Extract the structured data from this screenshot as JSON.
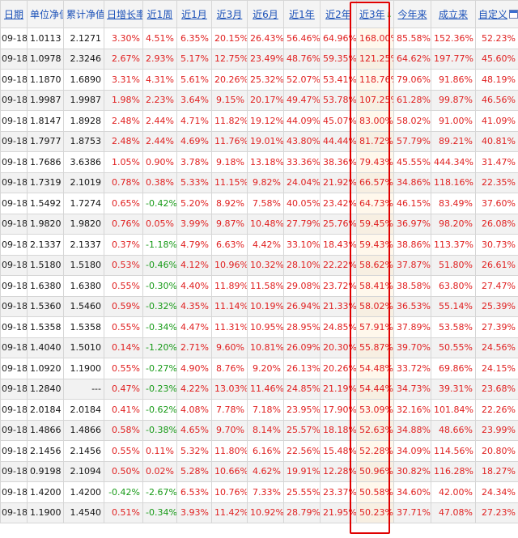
{
  "headers": {
    "date": "日期",
    "unit_nav": "单位净值",
    "acc_nav": "累计净值",
    "daily": "日增长率",
    "w1": "近1周",
    "m1": "近1月",
    "m3": "近3月",
    "m6": "近6月",
    "y1": "近1年",
    "y2": "近2年",
    "y3": "近3年",
    "ytd": "今年来",
    "since": "成立来",
    "custom": "自定义"
  },
  "icons": {
    "sort": "sort-down-arrow-icon",
    "custom": "calendar-icon"
  },
  "colors": {
    "up": "#e02020",
    "down": "#179a17",
    "link": "#1a50b8",
    "highlight": "#e00000"
  },
  "rows": [
    [
      "09-18",
      "1.0113",
      "2.1271",
      "3.30%",
      "4.51%",
      "6.35%",
      "20.15%",
      "26.43%",
      "56.46%",
      "64.96%",
      "168.00%",
      "85.58%",
      "152.36%",
      "52.23%"
    ],
    [
      "09-18",
      "1.0978",
      "2.3246",
      "2.67%",
      "2.93%",
      "5.17%",
      "12.75%",
      "23.49%",
      "48.76%",
      "59.35%",
      "121.25%",
      "64.62%",
      "197.77%",
      "45.60%"
    ],
    [
      "09-18",
      "1.1870",
      "1.6890",
      "3.31%",
      "4.31%",
      "5.61%",
      "20.26%",
      "25.32%",
      "52.07%",
      "53.41%",
      "118.76%",
      "79.06%",
      "91.86%",
      "48.19%"
    ],
    [
      "09-18",
      "1.9987",
      "1.9987",
      "1.98%",
      "2.23%",
      "3.64%",
      "9.15%",
      "20.17%",
      "49.47%",
      "53.78%",
      "107.25%",
      "61.28%",
      "99.87%",
      "46.56%"
    ],
    [
      "09-18",
      "1.8147",
      "1.8928",
      "2.48%",
      "2.44%",
      "4.71%",
      "11.82%",
      "19.12%",
      "44.09%",
      "45.07%",
      "83.00%",
      "58.02%",
      "91.00%",
      "41.09%"
    ],
    [
      "09-18",
      "1.7977",
      "1.8753",
      "2.48%",
      "2.44%",
      "4.69%",
      "11.76%",
      "19.01%",
      "43.80%",
      "44.44%",
      "81.72%",
      "57.79%",
      "89.21%",
      "40.81%"
    ],
    [
      "09-18",
      "1.7686",
      "3.6386",
      "1.05%",
      "0.90%",
      "3.78%",
      "9.18%",
      "13.18%",
      "33.36%",
      "38.36%",
      "79.43%",
      "45.55%",
      "444.34%",
      "31.47%"
    ],
    [
      "09-18",
      "1.7319",
      "2.1019",
      "0.78%",
      "0.38%",
      "5.33%",
      "11.15%",
      "9.82%",
      "24.04%",
      "21.92%",
      "66.57%",
      "34.86%",
      "118.16%",
      "22.35%"
    ],
    [
      "09-18",
      "1.5492",
      "1.7274",
      "0.65%",
      "-0.42%",
      "5.20%",
      "8.92%",
      "7.58%",
      "40.05%",
      "23.42%",
      "64.73%",
      "46.15%",
      "83.49%",
      "37.60%"
    ],
    [
      "09-18",
      "1.9820",
      "1.9820",
      "0.76%",
      "0.05%",
      "3.99%",
      "9.87%",
      "10.48%",
      "27.79%",
      "25.76%",
      "59.45%",
      "36.97%",
      "98.20%",
      "26.08%"
    ],
    [
      "09-18",
      "2.1337",
      "2.1337",
      "0.37%",
      "-1.18%",
      "4.79%",
      "6.63%",
      "4.42%",
      "33.10%",
      "18.43%",
      "59.43%",
      "38.86%",
      "113.37%",
      "30.73%"
    ],
    [
      "09-18",
      "1.5180",
      "1.5180",
      "0.53%",
      "-0.46%",
      "4.12%",
      "10.96%",
      "10.32%",
      "28.10%",
      "22.22%",
      "58.62%",
      "37.87%",
      "51.80%",
      "26.61%"
    ],
    [
      "09-18",
      "1.6380",
      "1.6380",
      "0.55%",
      "-0.30%",
      "4.40%",
      "11.89%",
      "11.58%",
      "29.08%",
      "23.72%",
      "58.41%",
      "38.58%",
      "63.80%",
      "27.47%"
    ],
    [
      "09-18",
      "1.5360",
      "1.5460",
      "0.59%",
      "-0.32%",
      "4.35%",
      "11.14%",
      "10.19%",
      "26.94%",
      "21.33%",
      "58.02%",
      "36.53%",
      "55.14%",
      "25.39%"
    ],
    [
      "09-18",
      "1.5358",
      "1.5358",
      "0.55%",
      "-0.34%",
      "4.47%",
      "11.31%",
      "10.95%",
      "28.95%",
      "24.85%",
      "57.91%",
      "37.89%",
      "53.58%",
      "27.39%"
    ],
    [
      "09-18",
      "1.4040",
      "1.5010",
      "0.14%",
      "-1.20%",
      "2.71%",
      "9.60%",
      "10.81%",
      "26.09%",
      "20.30%",
      "55.87%",
      "39.70%",
      "50.55%",
      "24.56%"
    ],
    [
      "09-18",
      "1.0920",
      "1.1900",
      "0.55%",
      "-0.27%",
      "4.90%",
      "8.76%",
      "9.20%",
      "26.13%",
      "20.26%",
      "54.48%",
      "33.72%",
      "69.86%",
      "24.15%"
    ],
    [
      "09-18",
      "1.2840",
      "---",
      "0.47%",
      "-0.23%",
      "4.22%",
      "13.03%",
      "11.46%",
      "24.85%",
      "21.19%",
      "54.44%",
      "34.73%",
      "39.31%",
      "23.68%"
    ],
    [
      "09-18",
      "2.0184",
      "2.0184",
      "0.41%",
      "-0.62%",
      "4.08%",
      "7.78%",
      "7.18%",
      "23.95%",
      "17.90%",
      "53.09%",
      "32.16%",
      "101.84%",
      "22.26%"
    ],
    [
      "09-18",
      "1.4866",
      "1.4866",
      "0.58%",
      "-0.38%",
      "4.65%",
      "9.70%",
      "8.14%",
      "25.57%",
      "18.18%",
      "52.63%",
      "34.88%",
      "48.66%",
      "23.99%"
    ],
    [
      "09-18",
      "2.1456",
      "2.1456",
      "0.55%",
      "0.11%",
      "5.32%",
      "11.80%",
      "6.16%",
      "22.56%",
      "15.48%",
      "52.28%",
      "34.09%",
      "114.56%",
      "20.80%"
    ],
    [
      "09-18",
      "0.9198",
      "2.1094",
      "0.50%",
      "0.02%",
      "5.28%",
      "10.66%",
      "4.62%",
      "19.91%",
      "12.28%",
      "50.96%",
      "30.82%",
      "116.28%",
      "18.27%"
    ],
    [
      "09-18",
      "1.4200",
      "1.4200",
      "-0.42%",
      "-2.67%",
      "6.53%",
      "10.76%",
      "7.33%",
      "25.55%",
      "23.37%",
      "50.58%",
      "34.60%",
      "42.00%",
      "24.34%"
    ],
    [
      "09-18",
      "1.1900",
      "1.4540",
      "0.51%",
      "-0.34%",
      "3.93%",
      "11.42%",
      "10.92%",
      "28.79%",
      "21.95%",
      "50.23%",
      "37.71%",
      "47.08%",
      "27.23%"
    ]
  ]
}
